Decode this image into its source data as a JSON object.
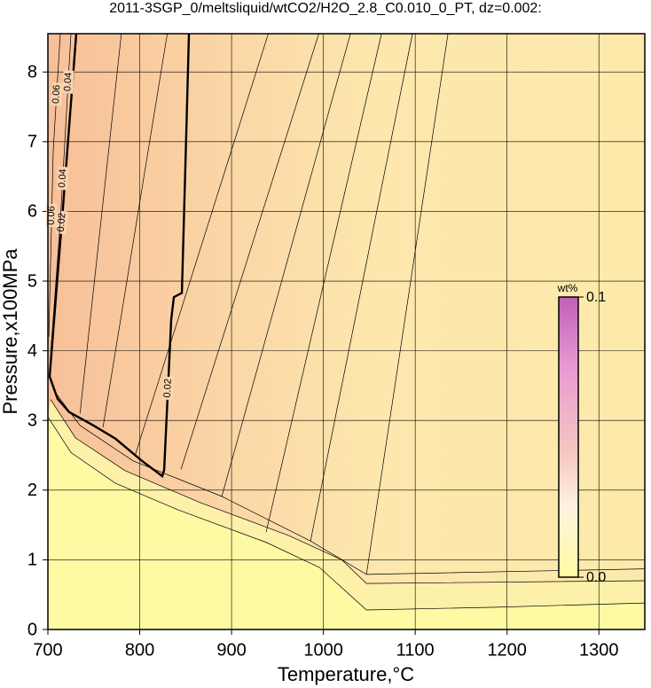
{
  "chart_data": {
    "type": "contour",
    "title": "2011-3SGP_0/meltsliquid/wtCO2/H2O_2.8_C0.010_0_PT, dz=0.002:",
    "x_label": "Temperature,°C",
    "y_label": "Pressure,x100MPa",
    "xlim": [
      700,
      1350
    ],
    "ylim": [
      0,
      8.55
    ],
    "xticks": [
      700,
      800,
      900,
      1000,
      1100,
      1200,
      1300
    ],
    "yticks": [
      0,
      1,
      2,
      3,
      4,
      5,
      6,
      7,
      8
    ],
    "grid": true,
    "contours": [
      {
        "level": 0.02,
        "bold": true,
        "x": [
          730.9,
          715.5,
          701.9,
          710.6,
          723.2,
          749.3,
          773.4,
          802.4,
          824.6,
          826.6,
          834.3,
          837.2,
          845.9,
          850.7,
          853.6
        ],
        "y": [
          8.55,
          5.9,
          3.63,
          3.31,
          3.12,
          2.93,
          2.74,
          2.42,
          2.2,
          2.29,
          4.45,
          4.77,
          4.83,
          7.12,
          8.55
        ]
      },
      {
        "level": 0.04,
        "x": [
          702.9,
          713.5,
          725.1
        ],
        "y": [
          3.94,
          5.85,
          8.55
        ]
      },
      {
        "level": 0.06,
        "x": [
          701,
          705.8,
          713.5
        ],
        "y": [
          4.2,
          6.87,
          8.55
        ]
      },
      {
        "x": [
          700,
          725.1,
          773.4,
          841.1,
          937.7,
          995.7,
          1046.9,
          1189,
          1350
        ],
        "y": [
          3.05,
          2.54,
          2.1,
          1.72,
          1.25,
          0.89,
          0.28,
          0.32,
          0.38
        ]
      },
      {
        "x": [
          703,
          730,
          784,
          866,
          962,
          1020,
          1046.9,
          1350
        ],
        "y": [
          3.3,
          2.75,
          2.28,
          1.82,
          1.35,
          1.0,
          0.66,
          0.7
        ]
      },
      {
        "x": [
          705.8,
          734.8,
          792.8,
          889.4,
          986,
          1046.9,
          1350
        ],
        "y": [
          3.44,
          2.93,
          2.42,
          1.91,
          1.27,
          0.79,
          0.87
        ]
      },
      {
        "x": [
          1046.9,
          1135.7
        ],
        "y": [
          0.79,
          8.55
        ]
      },
      {
        "x": [
          986,
          1097
        ],
        "y": [
          1.27,
          8.55
        ]
      },
      {
        "x": [
          937.7,
          1063.3
        ],
        "y": [
          1.4,
          8.55
        ]
      },
      {
        "x": [
          889.4,
          1029.5
        ],
        "y": [
          1.91,
          8.55
        ]
      },
      {
        "x": [
          845,
          995
        ],
        "y": [
          2.3,
          8.55
        ]
      },
      {
        "x": [
          795,
          940
        ],
        "y": [
          2.5,
          8.55
        ]
      },
      {
        "x": [
          760,
          830
        ],
        "y": [
          2.9,
          8.55
        ]
      },
      {
        "x": [
          735,
          780
        ],
        "y": [
          3.1,
          8.55
        ]
      }
    ],
    "colorbar": {
      "label": "wt%",
      "ticks": [
        {
          "value": 0.1,
          "label": "0.1"
        },
        {
          "value": 0,
          "label": "0.0"
        }
      ],
      "lim": [
        0,
        0.1
      ]
    }
  }
}
